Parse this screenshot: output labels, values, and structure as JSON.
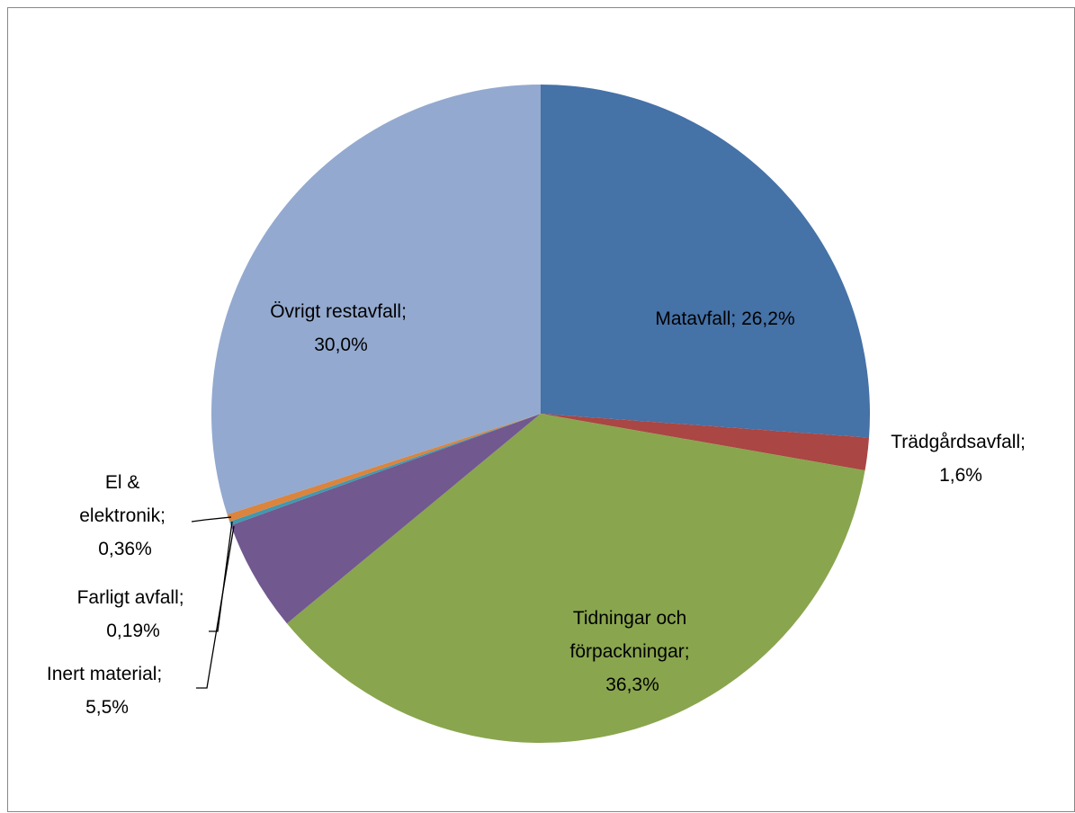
{
  "chart_data": {
    "type": "pie",
    "labels": [
      "Matavfall; 26,2%",
      "Trädgårdsavfall; 1,6%",
      "Tidningar och förpackningar; 36,3%",
      "Inert material; 5,5%",
      "Farligt avfall; 0,19%",
      "El & elektronik; 0,36%",
      "Övrigt restavfall; 30,0%"
    ],
    "values": [
      26.2,
      1.6,
      36.3,
      5.5,
      0.19,
      0.36,
      30.0
    ],
    "colors": [
      "#4572a7",
      "#aa4643",
      "#89a54e",
      "#71588f",
      "#4198af",
      "#db843d",
      "#93a9cf"
    ]
  }
}
